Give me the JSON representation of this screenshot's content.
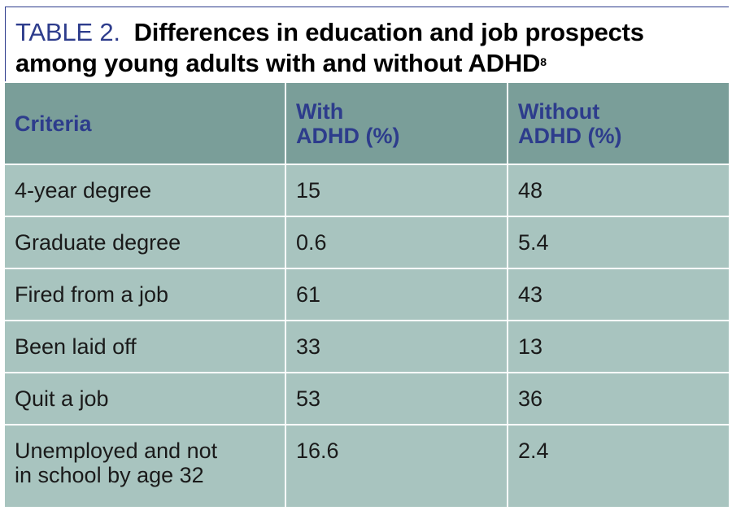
{
  "title": {
    "label": "TABLE 2.",
    "text": "Differences in education and job prospects among young adults with and without ADHD",
    "superscript": "8"
  },
  "table": {
    "headers": [
      [
        "Criteria"
      ],
      [
        "With",
        "ADHD (%)"
      ],
      [
        "Without",
        "ADHD (%)"
      ]
    ],
    "rows": [
      {
        "criteria": [
          "4-year degree"
        ],
        "with": "15",
        "without": "48"
      },
      {
        "criteria": [
          "Graduate degree"
        ],
        "with": "0.6",
        "without": "5.4"
      },
      {
        "criteria": [
          "Fired from a job"
        ],
        "with": "61",
        "without": "43"
      },
      {
        "criteria": [
          "Been laid off"
        ],
        "with": "33",
        "without": "13"
      },
      {
        "criteria": [
          "Quit a job"
        ],
        "with": "53",
        "without": "36"
      },
      {
        "criteria": [
          "Unemployed and not",
          "in school by age 32"
        ],
        "with": "16.6",
        "without": "2.4"
      }
    ]
  },
  "colors": {
    "accent": "#2d3c8c",
    "header_bg": "#7a9e99",
    "cell_bg": "#a8c4bf"
  }
}
